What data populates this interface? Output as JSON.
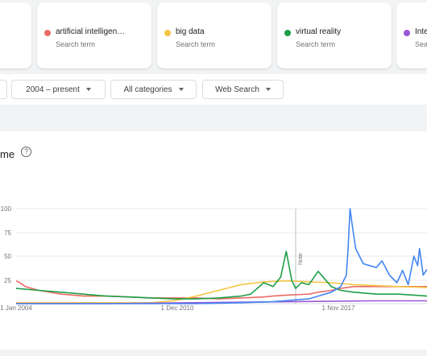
{
  "terms": [
    {
      "name": "artificial intelligen…",
      "sub": "Search term",
      "color": "#ea6b66"
    },
    {
      "name": "big data",
      "sub": "Search term",
      "color": "#f5c443"
    },
    {
      "name": "virtual reality",
      "sub": "Search term",
      "color": "#1e9e47"
    },
    {
      "name": "Inte",
      "sub": "Sear",
      "color": "#9a55d6"
    }
  ],
  "filters": {
    "time": "2004 – present",
    "category": "All categories",
    "search_type": "Web Search"
  },
  "chart": {
    "title_fragment": "me",
    "help_icon": "?",
    "note_label": "Note"
  },
  "chart_data": {
    "type": "line",
    "ylim": [
      0,
      100
    ],
    "y_ticks": [
      "100",
      "75",
      "50",
      "25"
    ],
    "x_ticks": [
      "1 Jan 2004",
      "1 Dec 2010",
      "1 Nov 2017"
    ],
    "xrange": [
      "2004-01",
      "2022-04"
    ],
    "series": [
      {
        "color": "#4285f4",
        "x": [
          "2004-01",
          "2010-01",
          "2012-01",
          "2014-01",
          "2015-06",
          "2016-06",
          "2017-01",
          "2017-06",
          "2018-01",
          "2018-06",
          "2018-09",
          "2018-10",
          "2018-11",
          "2018-12",
          "2019-02",
          "2019-06",
          "2020-01",
          "2020-04",
          "2020-08",
          "2020-12",
          "2021-03",
          "2021-06",
          "2021-09",
          "2021-11",
          "2021-12",
          "2022-02",
          "2022-04"
        ],
        "y": [
          0,
          0,
          0,
          1,
          2,
          4,
          5,
          8,
          12,
          18,
          30,
          60,
          100,
          85,
          58,
          42,
          38,
          45,
          30,
          22,
          35,
          20,
          50,
          40,
          58,
          30,
          36
        ]
      },
      {
        "color": "#ea6b66",
        "x": [
          "2004-01",
          "2004-03",
          "2004-06",
          "2005-01",
          "2006-01",
          "2007-01",
          "2008-01",
          "2009-01",
          "2010-01",
          "2011-01",
          "2012-01",
          "2013-01",
          "2014-01",
          "2015-01",
          "2015-06",
          "2016-01",
          "2017-01",
          "2017-06",
          "2018-01",
          "2018-06",
          "2019-01",
          "2020-01",
          "2021-01",
          "2022-04"
        ],
        "y": [
          24,
          22,
          18,
          14,
          10,
          8,
          8,
          7,
          6,
          6,
          6,
          5,
          6,
          7,
          8,
          9,
          10,
          12,
          14,
          16,
          18,
          18,
          18,
          18
        ]
      },
      {
        "color": "#f5c443",
        "x": [
          "2004-01",
          "2010-01",
          "2011-01",
          "2012-01",
          "2013-01",
          "2014-01",
          "2015-01",
          "2016-01",
          "2017-01",
          "2018-01",
          "2019-01",
          "2020-01",
          "2021-01",
          "2022-04"
        ],
        "y": [
          1,
          1,
          3,
          8,
          14,
          20,
          23,
          24,
          23,
          22,
          20,
          19,
          18,
          17
        ]
      },
      {
        "color": "#1e9e47",
        "x": [
          "2004-01",
          "2005-01",
          "2006-01",
          "2007-01",
          "2008-01",
          "2009-01",
          "2010-01",
          "2011-01",
          "2012-01",
          "2013-01",
          "2014-01",
          "2014-06",
          "2015-01",
          "2015-06",
          "2015-10",
          "2016-01",
          "2016-04",
          "2016-06",
          "2016-09",
          "2017-01",
          "2017-06",
          "2018-01",
          "2018-06",
          "2019-01",
          "2020-01",
          "2021-01",
          "2022-04"
        ],
        "y": [
          16,
          14,
          12,
          10,
          8,
          7,
          6,
          5,
          5,
          6,
          8,
          10,
          22,
          18,
          28,
          55,
          24,
          16,
          22,
          20,
          34,
          18,
          14,
          12,
          10,
          10,
          8
        ]
      },
      {
        "color": "#9a55d6",
        "x": [
          "2004-01",
          "2008-01",
          "2012-01",
          "2016-01",
          "2020-01",
          "2022-04"
        ],
        "y": [
          0,
          0,
          1,
          2,
          3,
          3
        ]
      }
    ]
  }
}
